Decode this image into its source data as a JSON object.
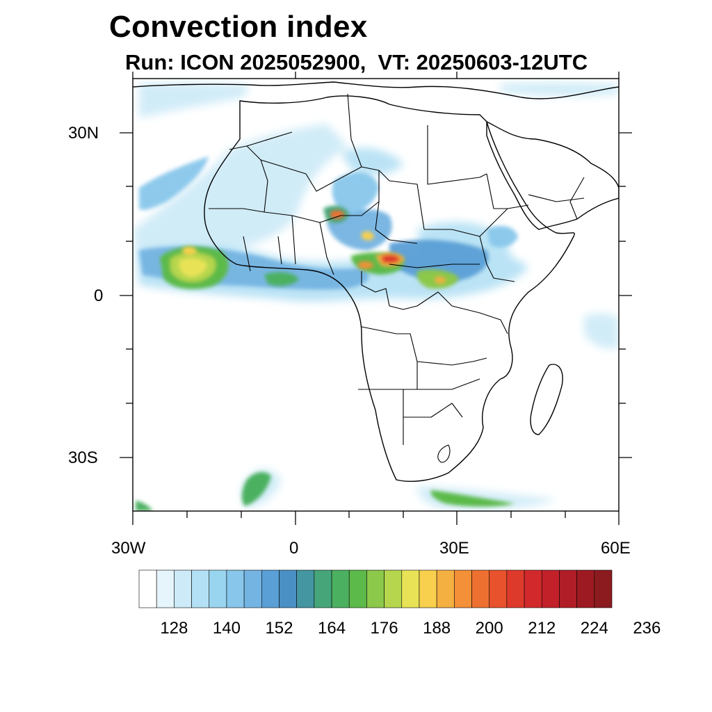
{
  "title": "Convection index",
  "subtitle": "Run: ICON 2025052900,  VT: 20250603-12UTC",
  "axes": {
    "lat_labels": [
      "30N",
      "0",
      "30S"
    ],
    "lat_values": [
      30,
      0,
      -30
    ],
    "lon_labels": [
      "30W",
      "0",
      "30E",
      "60E"
    ],
    "lon_values": [
      -30,
      0,
      30,
      60
    ],
    "lon_range": [
      -30,
      60
    ],
    "lat_range": [
      -40,
      40
    ]
  },
  "colorbar": {
    "labels": [
      "128",
      "140",
      "152",
      "164",
      "176",
      "188",
      "200",
      "212",
      "224",
      "236"
    ],
    "colors": [
      "#ffffff",
      "#e6f4fb",
      "#cceaf7",
      "#b3e0f4",
      "#9ad5f0",
      "#88c7eb",
      "#74b4e2",
      "#5a9fd6",
      "#4a90c4",
      "#4496a0",
      "#46a67a",
      "#4bb060",
      "#5cba4a",
      "#8cc84a",
      "#b6d64e",
      "#e8e356",
      "#f8d04e",
      "#f5b042",
      "#f39038",
      "#ee7030",
      "#e8522c",
      "#de3a2c",
      "#d22a2c",
      "#c2212a",
      "#b01d26",
      "#9e1a22",
      "#8b1b1f"
    ]
  },
  "chart_data": {
    "type": "heatmap",
    "title": "Convection index",
    "subtitle": "Run: ICON 2025052900,  VT: 20250603-12UTC",
    "region": "Africa and adjacent oceans",
    "lon_range": [
      -30,
      60
    ],
    "lat_range": [
      -40,
      40
    ],
    "colorbar_levels": [
      128,
      140,
      152,
      164,
      176,
      188,
      200,
      212,
      224,
      236
    ],
    "notable_maxima": [
      {
        "description": "Atlantic off West Africa",
        "lon": -22,
        "lat": 4,
        "value_range": [
          176,
          200
        ]
      },
      {
        "description": "Central Africa (Chad/CAR)",
        "lon": 18,
        "lat": 7,
        "value_range": [
          188,
          224
        ]
      },
      {
        "description": "Nigeria / Niger",
        "lon": 7,
        "lat": 15,
        "value_range": [
          176,
          212
        ]
      }
    ]
  }
}
